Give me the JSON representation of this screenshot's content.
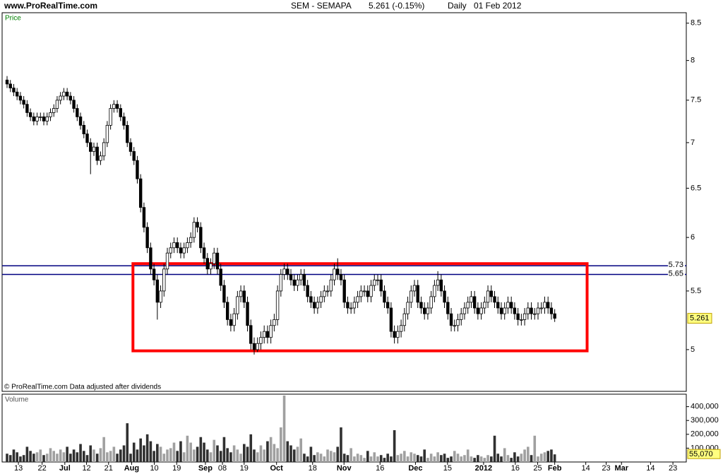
{
  "chart_data": {
    "type": "candlestick",
    "site": "www.ProRealTime.com",
    "title": "SEM - SEMAPA",
    "quote": "5.261 (-0.15%)",
    "period": "Daily",
    "date": "01 Feb 2012",
    "panel_label": "Price",
    "footer": "© ProRealTime.com  Data adjusted after dividends",
    "log_scale": true,
    "ylim": [
      4.672,
      8.646
    ],
    "yticks": [
      5,
      5.5,
      6,
      6.5,
      7,
      7.5,
      8,
      8.5
    ],
    "xlim": [
      -1.48,
      203.4
    ],
    "xticks": [
      {
        "value": 3.4,
        "label": "13"
      },
      {
        "value": 10.5,
        "label": "22"
      },
      {
        "value": 17.3,
        "label": "Jul"
      },
      {
        "value": 23.8,
        "label": "12"
      },
      {
        "value": 30.4,
        "label": "21"
      },
      {
        "value": 37.3,
        "label": "Aug"
      },
      {
        "value": 44.1,
        "label": "10"
      },
      {
        "value": 50.8,
        "label": "19"
      },
      {
        "value": 59.4,
        "label": "Sep"
      },
      {
        "value": 64.5,
        "label": "08"
      },
      {
        "value": 71.0,
        "label": "19"
      },
      {
        "value": 80.7,
        "label": "Oct"
      },
      {
        "value": 91.5,
        "label": "18"
      },
      {
        "value": 100.9,
        "label": "Nov"
      },
      {
        "value": 111.7,
        "label": "16"
      },
      {
        "value": 122.3,
        "label": "Dec"
      },
      {
        "value": 131.9,
        "label": "15"
      },
      {
        "value": 142.7,
        "label": "2012"
      },
      {
        "value": 152.2,
        "label": "16"
      },
      {
        "value": 158.9,
        "label": "25"
      },
      {
        "value": 164,
        "label": "Feb"
      },
      {
        "value": 173.3,
        "label": "14"
      },
      {
        "value": 179.4,
        "label": "23"
      },
      {
        "value": 184,
        "label": "Mar"
      },
      {
        "value": 192.7,
        "label": "14"
      },
      {
        "value": 199.4,
        "label": "23"
      }
    ],
    "up_color": "#ffffff",
    "down_color": "#000000",
    "open": [
      7.75,
      7.7,
      7.65,
      7.6,
      7.55,
      7.5,
      7.45,
      7.35,
      7.3,
      7.25,
      7.3,
      7.3,
      7.25,
      7.3,
      7.35,
      7.4,
      7.5,
      7.55,
      7.6,
      7.55,
      7.5,
      7.4,
      7.3,
      7.2,
      7.1,
      7.0,
      6.9,
      6.95,
      6.8,
      6.85,
      7.0,
      7.2,
      7.4,
      7.45,
      7.4,
      7.3,
      7.2,
      7.0,
      6.9,
      6.8,
      6.6,
      6.3,
      6.1,
      5.9,
      5.7,
      5.6,
      5.4,
      5.5,
      5.7,
      5.85,
      5.9,
      5.95,
      5.9,
      5.85,
      5.9,
      5.95,
      6.0,
      6.15,
      6.1,
      5.9,
      5.8,
      5.7,
      5.75,
      5.85,
      5.7,
      5.55,
      5.4,
      5.25,
      5.2,
      5.3,
      5.45,
      5.5,
      5.4,
      5.2,
      5.05,
      5.0,
      5.05,
      5.1,
      5.15,
      5.1,
      5.2,
      5.25,
      5.5,
      5.65,
      5.7,
      5.65,
      5.6,
      5.55,
      5.6,
      5.65,
      5.55,
      5.45,
      5.4,
      5.35,
      5.4,
      5.45,
      5.5,
      5.5,
      5.6,
      5.7,
      5.65,
      5.6,
      5.4,
      5.35,
      5.35,
      5.4,
      5.45,
      5.5,
      5.5,
      5.45,
      5.55,
      5.6,
      5.6,
      5.5,
      5.4,
      5.35,
      5.15,
      5.1,
      5.15,
      5.2,
      5.3,
      5.4,
      5.5,
      5.55,
      5.4,
      5.35,
      5.3,
      5.35,
      5.45,
      5.55,
      5.6,
      5.5,
      5.4,
      5.3,
      5.2,
      5.2,
      5.25,
      5.3,
      5.35,
      5.4,
      5.45,
      5.35,
      5.3,
      5.35,
      5.4,
      5.5,
      5.45,
      5.4,
      5.35,
      5.3,
      5.35,
      5.4,
      5.35,
      5.3,
      5.25,
      5.25,
      5.3,
      5.35,
      5.3,
      5.3,
      5.35,
      5.35,
      5.4,
      5.35,
      5.3
    ],
    "high": [
      7.8,
      7.75,
      7.7,
      7.65,
      7.6,
      7.55,
      7.5,
      7.4,
      7.35,
      7.35,
      7.35,
      7.35,
      7.35,
      7.4,
      7.45,
      7.55,
      7.6,
      7.65,
      7.65,
      7.6,
      7.55,
      7.45,
      7.35,
      7.25,
      7.15,
      7.05,
      7.0,
      7.0,
      6.9,
      7.05,
      7.25,
      7.45,
      7.5,
      7.5,
      7.45,
      7.35,
      7.25,
      7.05,
      6.95,
      6.85,
      6.65,
      6.35,
      6.15,
      5.95,
      5.75,
      5.65,
      5.55,
      5.75,
      5.9,
      5.95,
      6.0,
      6.0,
      5.95,
      5.95,
      6.0,
      6.05,
      6.2,
      6.2,
      6.15,
      5.95,
      5.85,
      5.8,
      5.9,
      5.9,
      5.75,
      5.6,
      5.45,
      5.3,
      5.35,
      5.5,
      5.55,
      5.55,
      5.45,
      5.25,
      5.1,
      5.1,
      5.15,
      5.2,
      5.2,
      5.25,
      5.3,
      5.55,
      5.7,
      5.75,
      5.75,
      5.7,
      5.65,
      5.65,
      5.7,
      5.7,
      5.6,
      5.5,
      5.45,
      5.45,
      5.5,
      5.55,
      5.55,
      5.65,
      5.75,
      5.8,
      5.7,
      5.65,
      5.45,
      5.4,
      5.45,
      5.5,
      5.55,
      5.55,
      5.55,
      5.6,
      5.65,
      5.65,
      5.65,
      5.55,
      5.45,
      5.4,
      5.2,
      5.2,
      5.25,
      5.35,
      5.45,
      5.55,
      5.6,
      5.6,
      5.45,
      5.4,
      5.4,
      5.5,
      5.6,
      5.68,
      5.65,
      5.55,
      5.45,
      5.35,
      5.25,
      5.3,
      5.35,
      5.4,
      5.45,
      5.5,
      5.5,
      5.4,
      5.4,
      5.45,
      5.55,
      5.55,
      5.5,
      5.45,
      5.4,
      5.4,
      5.45,
      5.45,
      5.4,
      5.35,
      5.3,
      5.35,
      5.4,
      5.4,
      5.35,
      5.4,
      5.4,
      5.45,
      5.45,
      5.4,
      5.34
    ],
    "low": [
      7.65,
      7.6,
      7.55,
      7.5,
      7.45,
      7.4,
      7.3,
      7.25,
      7.2,
      7.2,
      7.25,
      7.2,
      7.2,
      7.25,
      7.3,
      7.35,
      7.45,
      7.5,
      7.5,
      7.45,
      7.35,
      7.25,
      7.15,
      7.05,
      6.95,
      6.65,
      6.85,
      6.75,
      6.75,
      6.8,
      6.95,
      7.15,
      7.35,
      7.35,
      7.25,
      7.15,
      6.95,
      6.85,
      6.75,
      6.55,
      6.25,
      6.05,
      5.85,
      5.65,
      5.55,
      5.25,
      5.35,
      5.45,
      5.65,
      5.8,
      5.85,
      5.85,
      5.8,
      5.8,
      5.85,
      5.9,
      5.95,
      6.05,
      5.85,
      5.75,
      5.65,
      5.65,
      5.7,
      5.65,
      5.5,
      5.35,
      5.2,
      5.15,
      5.15,
      5.25,
      5.4,
      5.35,
      5.15,
      5.0,
      4.96,
      4.98,
      5.0,
      5.05,
      5.05,
      5.05,
      5.15,
      5.2,
      5.45,
      5.6,
      5.6,
      5.55,
      5.5,
      5.5,
      5.55,
      5.5,
      5.4,
      5.35,
      5.3,
      5.3,
      5.35,
      5.4,
      5.45,
      5.45,
      5.55,
      5.6,
      5.55,
      5.35,
      5.3,
      5.3,
      5.3,
      5.35,
      5.4,
      5.45,
      5.4,
      5.4,
      5.5,
      5.55,
      5.45,
      5.35,
      5.3,
      5.1,
      5.05,
      5.05,
      5.1,
      5.15,
      5.25,
      5.35,
      5.45,
      5.35,
      5.3,
      5.25,
      5.25,
      5.3,
      5.4,
      5.5,
      5.45,
      5.35,
      5.25,
      5.15,
      5.15,
      5.15,
      5.2,
      5.25,
      5.3,
      5.35,
      5.3,
      5.25,
      5.25,
      5.3,
      5.35,
      5.4,
      5.35,
      5.3,
      5.25,
      5.25,
      5.3,
      5.3,
      5.25,
      5.2,
      5.2,
      5.2,
      5.25,
      5.25,
      5.25,
      5.25,
      5.3,
      5.3,
      5.3,
      5.25,
      5.23
    ],
    "close": [
      7.7,
      7.65,
      7.6,
      7.55,
      7.5,
      7.45,
      7.35,
      7.3,
      7.25,
      7.3,
      7.3,
      7.25,
      7.3,
      7.35,
      7.4,
      7.5,
      7.55,
      7.6,
      7.55,
      7.5,
      7.4,
      7.3,
      7.2,
      7.1,
      7.0,
      6.9,
      6.95,
      6.8,
      6.85,
      7.0,
      7.2,
      7.4,
      7.45,
      7.4,
      7.3,
      7.2,
      7.0,
      6.9,
      6.8,
      6.6,
      6.3,
      6.1,
      5.9,
      5.7,
      5.6,
      5.4,
      5.5,
      5.7,
      5.85,
      5.9,
      5.95,
      5.9,
      5.85,
      5.9,
      5.95,
      6.0,
      6.15,
      6.1,
      5.9,
      5.8,
      5.7,
      5.75,
      5.85,
      5.7,
      5.55,
      5.4,
      5.25,
      5.2,
      5.3,
      5.45,
      5.5,
      5.4,
      5.2,
      5.05,
      5.0,
      5.05,
      5.1,
      5.15,
      5.1,
      5.2,
      5.25,
      5.5,
      5.65,
      5.7,
      5.65,
      5.6,
      5.55,
      5.6,
      5.65,
      5.55,
      5.45,
      5.4,
      5.35,
      5.4,
      5.45,
      5.5,
      5.5,
      5.6,
      5.7,
      5.65,
      5.6,
      5.4,
      5.35,
      5.35,
      5.4,
      5.45,
      5.5,
      5.5,
      5.45,
      5.55,
      5.6,
      5.6,
      5.5,
      5.4,
      5.35,
      5.15,
      5.1,
      5.15,
      5.2,
      5.3,
      5.4,
      5.5,
      5.55,
      5.4,
      5.35,
      5.3,
      5.35,
      5.45,
      5.55,
      5.6,
      5.5,
      5.4,
      5.3,
      5.2,
      5.2,
      5.25,
      5.3,
      5.35,
      5.4,
      5.45,
      5.35,
      5.3,
      5.35,
      5.4,
      5.5,
      5.45,
      5.4,
      5.35,
      5.3,
      5.35,
      5.4,
      5.35,
      5.3,
      5.25,
      5.25,
      5.3,
      5.35,
      5.3,
      5.3,
      5.35,
      5.35,
      5.4,
      5.35,
      5.3,
      5.261
    ],
    "hlines": [
      {
        "value": 5.73,
        "color": "#000080"
      },
      {
        "value": 5.65,
        "color": "#000080"
      }
    ],
    "annotation_box": {
      "x": [
        37.7,
        173.7
      ],
      "y": [
        4.99,
        5.75
      ],
      "color": "#ff0000"
    },
    "volume": {
      "label": "Volume",
      "ylim": [
        0,
        490000
      ],
      "yticks": [
        {
          "value": 100000,
          "label": "100,000"
        },
        {
          "value": 200000,
          "label": "200,000"
        },
        {
          "value": 300000,
          "label": "300,000"
        },
        {
          "value": 400000,
          "label": "400,000"
        }
      ],
      "last_value_label": "55,070",
      "up_color": "#a0a0a0",
      "down_color": "#303030",
      "values": [
        60000,
        50000,
        90000,
        70000,
        40000,
        50000,
        110000,
        80000,
        60000,
        70000,
        90000,
        50000,
        60000,
        100000,
        80000,
        60000,
        90000,
        70000,
        110000,
        60000,
        90000,
        70000,
        130000,
        80000,
        50000,
        120000,
        90000,
        60000,
        100000,
        180000,
        70000,
        80000,
        110000,
        60000,
        90000,
        120000,
        280000,
        60000,
        140000,
        90000,
        170000,
        120000,
        200000,
        150000,
        80000,
        130000,
        110000,
        60000,
        90000,
        100000,
        140000,
        80000,
        150000,
        70000,
        190000,
        140000,
        90000,
        110000,
        180000,
        140000,
        90000,
        70000,
        160000,
        120000,
        80000,
        180000,
        100000,
        70000,
        120000,
        90000,
        60000,
        130000,
        110000,
        200000,
        90000,
        70000,
        120000,
        90000,
        150000,
        180000,
        130000,
        100000,
        250000,
        480000,
        150000,
        120000,
        90000,
        110000,
        170000,
        60000,
        40000,
        110000,
        50000,
        70000,
        60000,
        40000,
        90000,
        80000,
        70000,
        110000,
        250000,
        60000,
        50000,
        100000,
        40000,
        60000,
        50000,
        30000,
        80000,
        40000,
        70000,
        40000,
        50000,
        30000,
        60000,
        40000,
        230000,
        50000,
        60000,
        80000,
        40000,
        70000,
        60000,
        50000,
        40000,
        90000,
        30000,
        60000,
        40000,
        70000,
        50000,
        60000,
        30000,
        40000,
        80000,
        60000,
        40000,
        50000,
        90000,
        40000,
        30000,
        50000,
        40000,
        30000,
        50000,
        40000,
        190000,
        60000,
        40000,
        100000,
        50000,
        30000,
        70000,
        40000,
        60000,
        90000,
        110000,
        50000,
        190000,
        40000,
        60000,
        70000,
        80000,
        90000,
        55070
      ]
    }
  }
}
